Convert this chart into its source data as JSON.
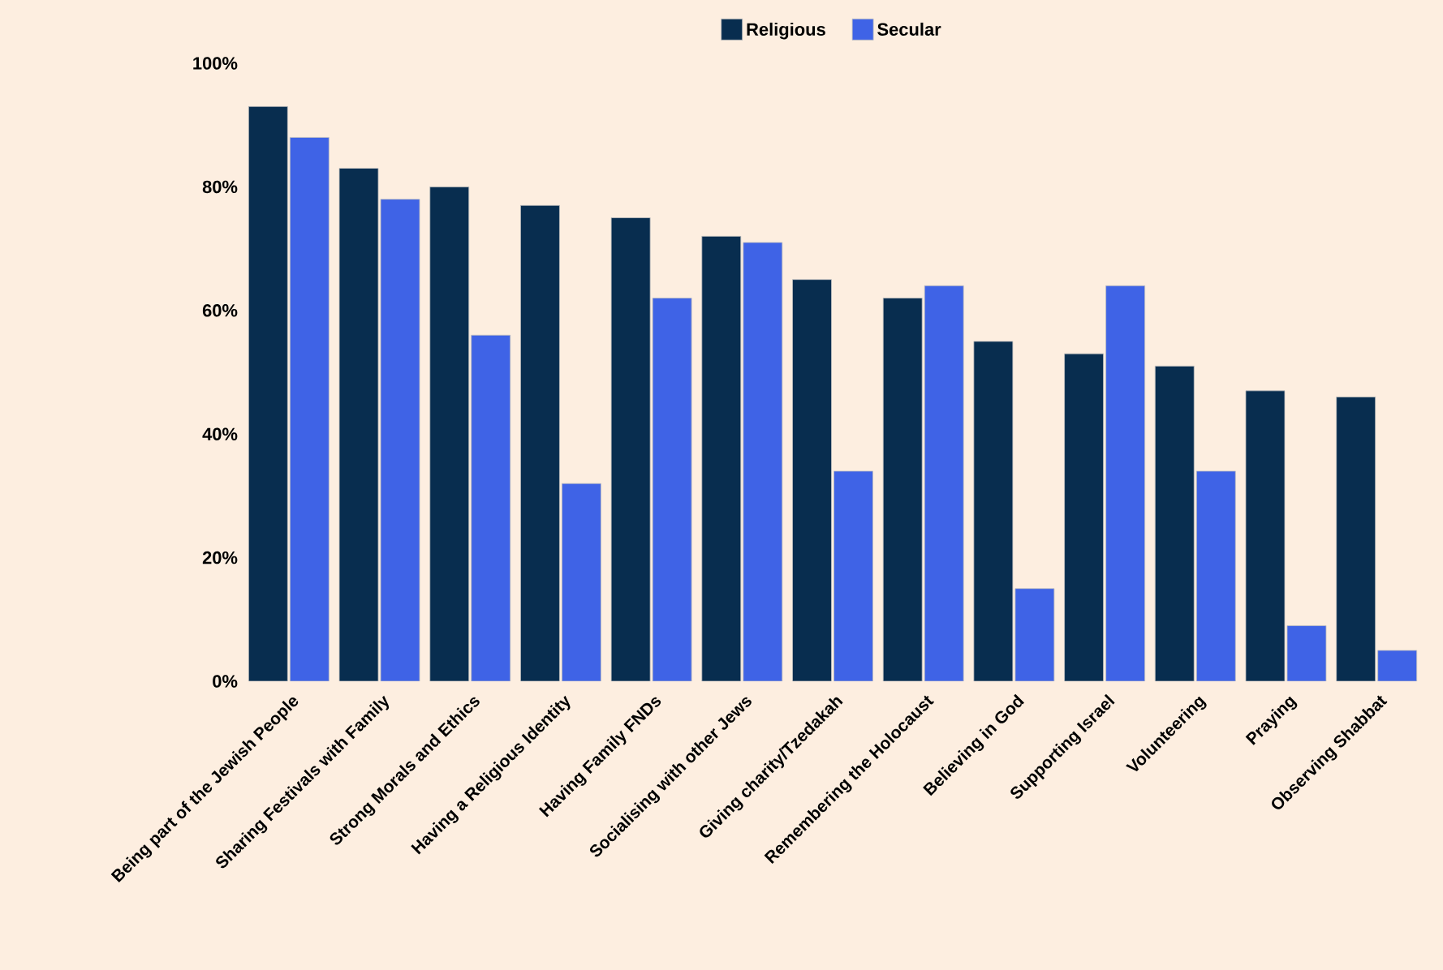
{
  "chart_data": {
    "type": "bar",
    "categories": [
      "Being part of the Jewish People",
      "Sharing Festivals with Family",
      "Strong Morals and Ethics",
      "Having a Religious Identity",
      "Having Family FNDs",
      "Socialising with other Jews",
      "Giving charity/Tzedakah",
      "Remembering the Holocaust",
      "Believing in God",
      "Supporting Israel",
      "Volunteering",
      "Praying",
      "Observing Shabbat"
    ],
    "series": [
      {
        "name": "Religious",
        "color": "#082d4f",
        "values": [
          93,
          83,
          80,
          77,
          75,
          72,
          65,
          62,
          55,
          53,
          51,
          47,
          46
        ]
      },
      {
        "name": "Secular",
        "color": "#3f63e6",
        "values": [
          88,
          78,
          56,
          32,
          62,
          71,
          34,
          64,
          15,
          64,
          34,
          9,
          5
        ]
      }
    ],
    "ylim": [
      0,
      100
    ],
    "yticks": [
      {
        "value": 0,
        "label": "0%"
      },
      {
        "value": 20,
        "label": "20%"
      },
      {
        "value": 40,
        "label": "40%"
      },
      {
        "value": 60,
        "label": "60%"
      },
      {
        "value": 80,
        "label": "80%"
      },
      {
        "value": 100,
        "label": "100%"
      }
    ],
    "grid": false,
    "legend": "top"
  }
}
